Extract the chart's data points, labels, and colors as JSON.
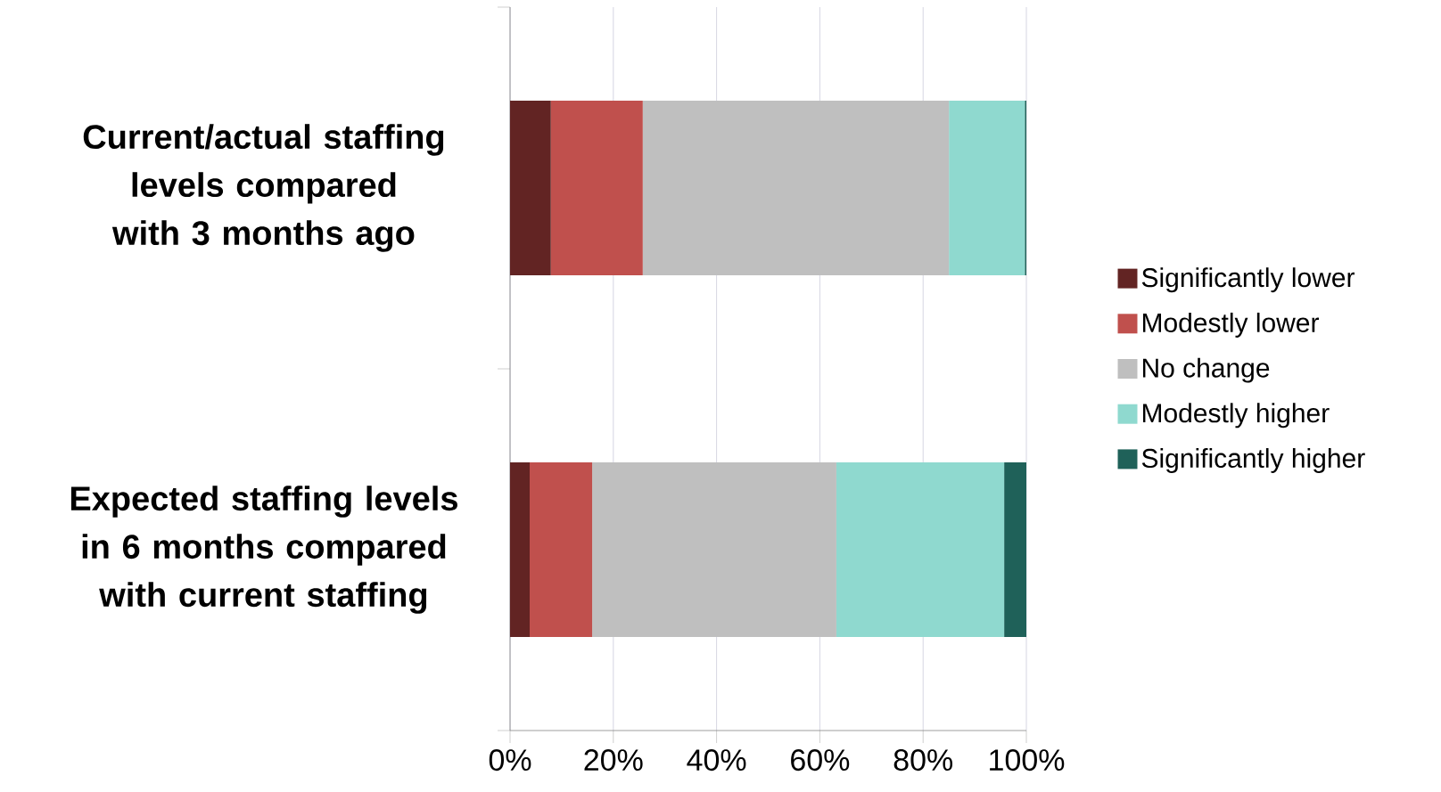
{
  "chart_data": {
    "type": "bar",
    "orientation": "horizontal",
    "stacked": true,
    "categories": [
      "Current/actual staffing levels compared with 3 months ago",
      "Expected staffing levels in 6 months compared with current staffing"
    ],
    "series": [
      {
        "name": "Significantly lower",
        "color": "#622423",
        "values": [
          7.9,
          3.8
        ]
      },
      {
        "name": "Modestly lower",
        "color": "#c0504d",
        "values": [
          17.8,
          12.1
        ]
      },
      {
        "name": "No change",
        "color": "#bfbfbf",
        "values": [
          59.3,
          47.3
        ]
      },
      {
        "name": "Modestly higher",
        "color": "#8fd9cf",
        "values": [
          14.7,
          32.5
        ]
      },
      {
        "name": "Significantly higher",
        "color": "#1f6159",
        "values": [
          0.3,
          4.3
        ]
      }
    ],
    "xlim": [
      0,
      100
    ],
    "xticks": [
      {
        "value": 0,
        "label": "0%"
      },
      {
        "value": 20,
        "label": "20%"
      },
      {
        "value": 40,
        "label": "40%"
      },
      {
        "value": 60,
        "label": "60%"
      },
      {
        "value": 80,
        "label": "80%"
      },
      {
        "value": 100,
        "label": "100%"
      }
    ],
    "grid": "x",
    "legend": "right"
  }
}
